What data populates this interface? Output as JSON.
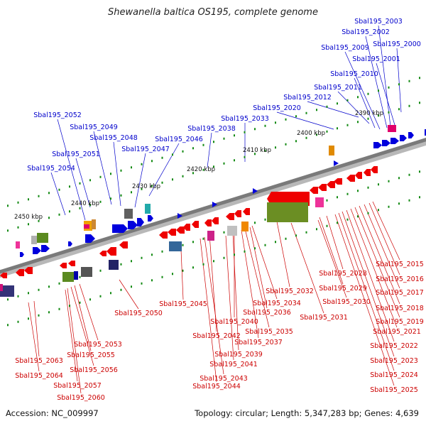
{
  "title": "Shewanella baltica OS195, complete genome",
  "footer": {
    "accession": "Accession: NC_009997",
    "summary": "Topology: circular; Length: 5,347,283 bp; Genes: 4,639"
  },
  "colors": {
    "plus_strand": "#0000dd",
    "minus_strand": "#ee0000",
    "backbone": "#7a7a7a",
    "tick": "#138a13",
    "label_blue": "#0000cc",
    "label_red": "#cc0000"
  },
  "scale_labels": [
    "2390 kbp",
    "2400 kbp",
    "2410 kbp",
    "2420 kbp",
    "2430 kbp",
    "2440 kbp",
    "2450 kbp"
  ],
  "plus_labels": [
    "Sbal195_2003",
    "Sbal195_2002",
    "Sbal195_2009",
    "Sbal195_2000",
    "Sbal195_2001",
    "Sbal195_2010",
    "Sbal195_2011",
    "Sbal195_2012",
    "Sbal195_2020",
    "Sbal195_2033",
    "Sbal195_2038",
    "Sbal195_2046",
    "Sbal195_2047",
    "Sbal195_2048",
    "Sbal195_2049",
    "Sbal195_2052",
    "Sbal195_2051",
    "Sbal195_2054"
  ],
  "minus_labels": [
    "Sbal195_2015",
    "Sbal195_2016",
    "Sbal195_2017",
    "Sbal195_2018",
    "Sbal195_2019",
    "Sbal195_2021",
    "Sbal195_2022",
    "Sbal195_2023",
    "Sbal195_2024",
    "Sbal195_2025",
    "Sbal195_2028",
    "Sbal195_2029",
    "Sbal195_2030",
    "Sbal195_2031",
    "Sbal195_2032",
    "Sbal195_2034",
    "Sbal195_2036",
    "Sbal195_2035",
    "Sbal195_2037",
    "Sbal195_2039",
    "Sbal195_2040",
    "Sbal195_2041",
    "Sbal195_2042",
    "Sbal195_2043",
    "Sbal195_2044",
    "Sbal195_2045",
    "Sbal195_2050",
    "Sbal195_2053",
    "Sbal195_2055",
    "Sbal195_2056",
    "Sbal195_2057",
    "Sbal195_2060",
    "Sbal195_2063",
    "Sbal195_2064"
  ]
}
